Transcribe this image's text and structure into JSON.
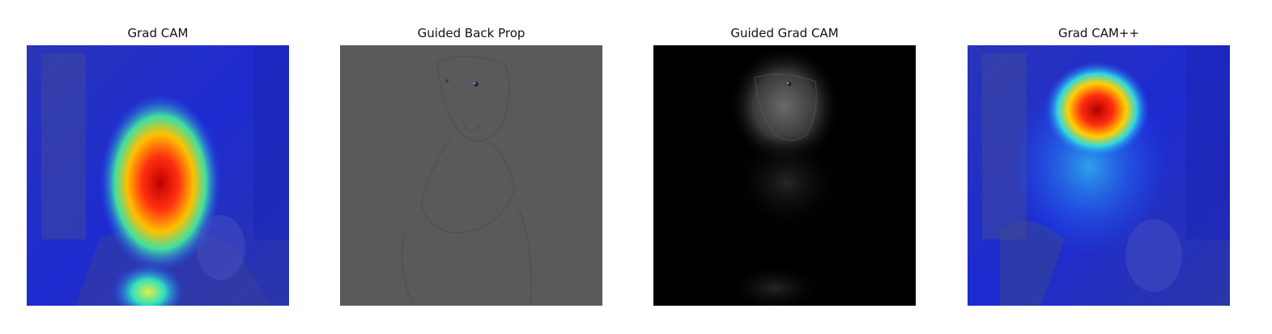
{
  "panels": [
    {
      "title": "Grad CAM",
      "kind": "heatmap-overlay"
    },
    {
      "title": "Guided Back Prop",
      "kind": "gradient-map"
    },
    {
      "title": "Guided Grad CAM",
      "kind": "masked-gradient"
    },
    {
      "title": "Grad CAM++",
      "kind": "heatmap-overlay"
    }
  ],
  "colors": {
    "jet_low": "#1e2fd6",
    "jet_high": "#e01010",
    "gray_bg": "#5a5a5a",
    "black_bg": "#000000"
  }
}
